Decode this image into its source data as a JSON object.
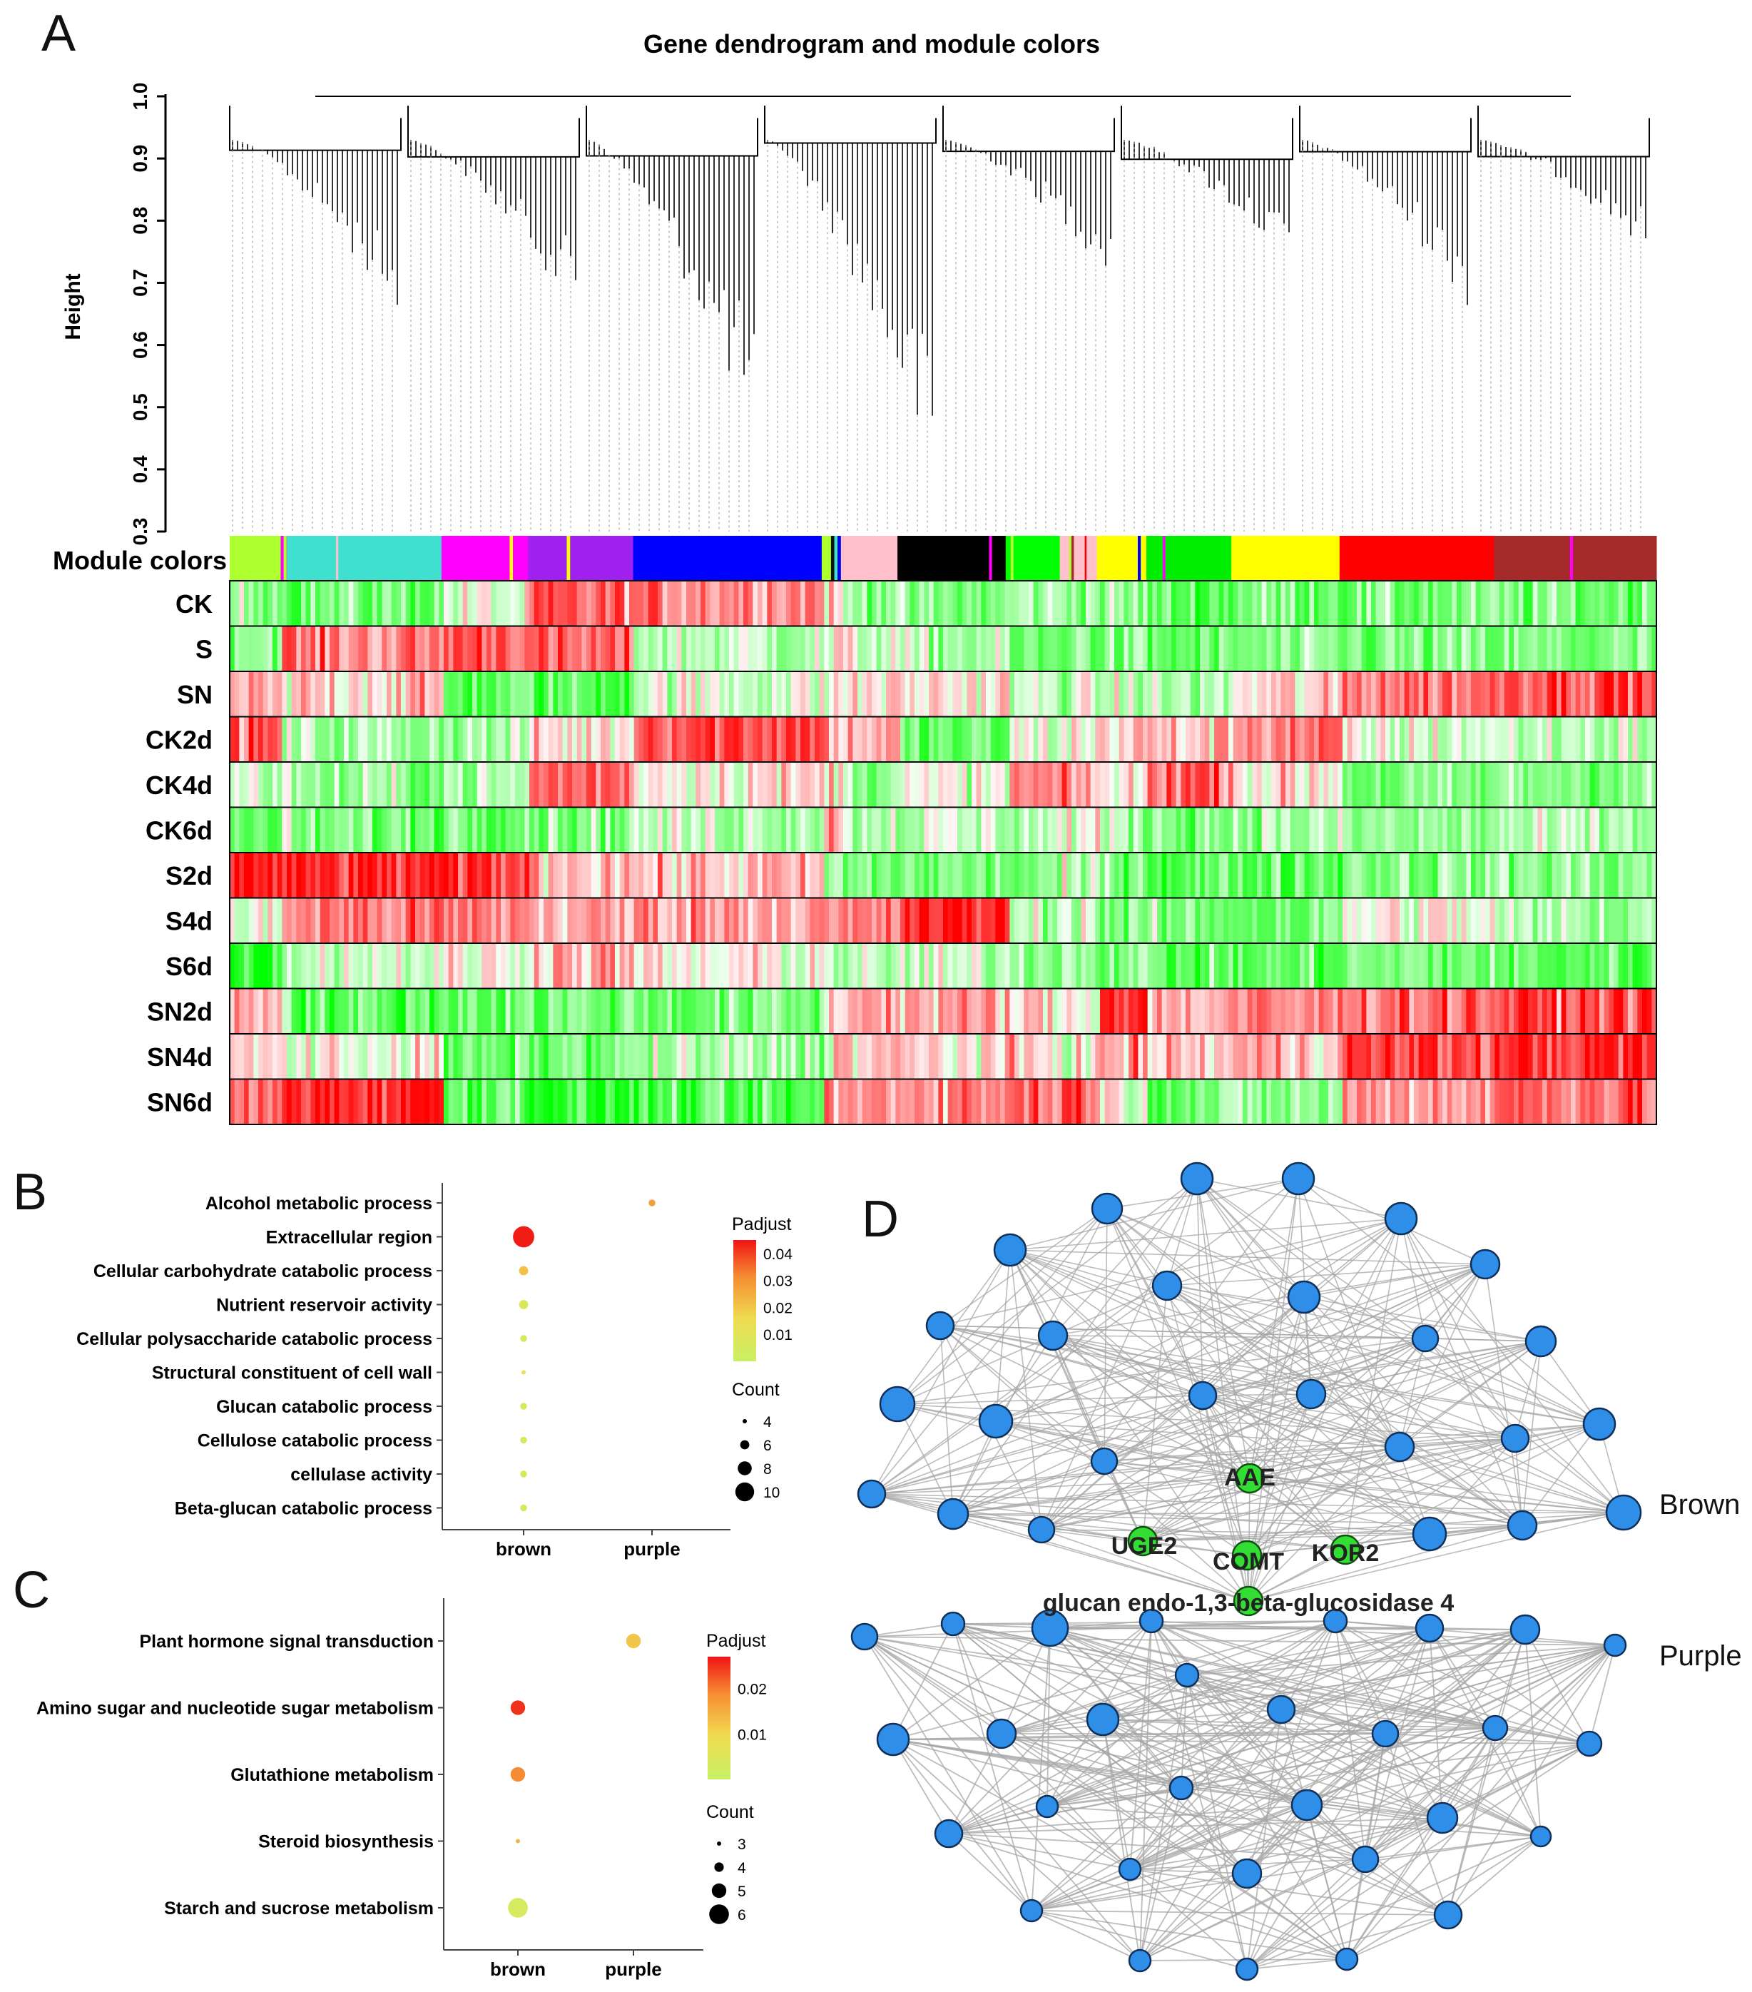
{
  "figure": {
    "panel_labels": [
      "A",
      "B",
      "C",
      "D"
    ],
    "colors": {
      "red": "#ff1a1a",
      "green": "#22ee22",
      "white": "#fff5f5",
      "edge": "#a6a6a6",
      "node_blue": "#2f8fe8",
      "node_green": "#33dd33"
    }
  },
  "panelA": {
    "title": "Gene dendrogram and module colors",
    "ylabel": "Height",
    "yticks": [
      "0.3",
      "0.4",
      "0.5",
      "0.6",
      "0.7",
      "0.8",
      "0.9",
      "1.0"
    ],
    "ylim": [
      0.3,
      1.0
    ],
    "module_colors_label": "Module colors",
    "modules": [
      {
        "name": "greenyellow",
        "color": "#adff2f",
        "size": 3.3
      },
      {
        "name": "magenta",
        "color": "#ff00ff",
        "size": 0.4
      },
      {
        "name": "turquoise",
        "color": "#40e0d0",
        "size": 10
      },
      {
        "name": "magenta",
        "color": "#ff00ff",
        "size": 5.6
      },
      {
        "name": "purple",
        "color": "#a020f0",
        "size": 6.8
      },
      {
        "name": "blue",
        "color": "#0000ff",
        "size": 12.2
      },
      {
        "name": "greenyellow",
        "color": "#adff2f",
        "size": 0.6
      },
      {
        "name": "black",
        "color": "#111111",
        "size": 0.5
      },
      {
        "name": "pink",
        "color": "#ffc0cb",
        "size": 3.8
      },
      {
        "name": "black",
        "color": "#000000",
        "size": 7.0
      },
      {
        "name": "green",
        "color": "#00ff00",
        "size": 3.5
      },
      {
        "name": "pink",
        "color": "#ffc0cb",
        "size": 2.4
      },
      {
        "name": "yellow",
        "color": "#ffff00",
        "size": 3.2
      },
      {
        "name": "green",
        "color": "#00ee00",
        "size": 5.5
      },
      {
        "name": "yellow",
        "color": "#ffff00",
        "size": 7.0
      },
      {
        "name": "red",
        "color": "#ff0000",
        "size": 10.0
      },
      {
        "name": "brown",
        "color": "#a52a2a",
        "size": 10.5
      }
    ],
    "trait_rows": [
      "CK",
      "S",
      "SN",
      "CK2d",
      "CK4d",
      "CK6d",
      "S2d",
      "S4d",
      "S6d",
      "SN2d",
      "SN4d",
      "SN6d"
    ],
    "row_profiles": [
      [
        -0.3,
        -0.6,
        -0.5,
        -0.1,
        0.55,
        0.5,
        0.15,
        0.0,
        -0.3,
        -0.5,
        -0.3,
        -0.3,
        -0.4,
        -0.6,
        -0.45,
        -0.5,
        -0.5
      ],
      [
        -0.3,
        0.6,
        0.45,
        0.7,
        0.5,
        -0.2,
        -0.1,
        0.1,
        -0.1,
        -0.3,
        -0.6,
        -0.4,
        -0.5,
        -0.6,
        -0.5,
        -0.5,
        -0.5
      ],
      [
        0.2,
        -0.2,
        0.2,
        -0.6,
        -0.6,
        -0.1,
        0.0,
        0.0,
        0.1,
        0.1,
        -0.2,
        -0.2,
        -0.2,
        -0.3,
        0.1,
        0.55,
        0.75
      ],
      [
        0.6,
        -0.3,
        -0.3,
        -0.3,
        0.1,
        0.75,
        0.4,
        0.2,
        0.3,
        -0.6,
        -0.1,
        0.0,
        0.2,
        0.2,
        0.5,
        -0.1,
        -0.2
      ],
      [
        -0.2,
        0.1,
        -0.4,
        -0.3,
        0.6,
        0.1,
        0.2,
        0.2,
        -0.3,
        -0.1,
        0.4,
        0.3,
        0.0,
        0.65,
        0.1,
        -0.5,
        -0.4
      ],
      [
        -0.6,
        -0.3,
        -0.5,
        -0.4,
        -0.4,
        -0.2,
        0.4,
        0.4,
        -0.2,
        -0.2,
        -0.2,
        0.0,
        -0.3,
        -0.4,
        -0.3,
        -0.4,
        -0.3
      ],
      [
        0.9,
        0.6,
        0.8,
        0.75,
        0.3,
        0.2,
        -0.5,
        -0.3,
        -0.5,
        -0.5,
        -0.5,
        -0.3,
        -0.4,
        -0.6,
        -0.55,
        -0.4,
        -0.4
      ],
      [
        -0.1,
        0.4,
        0.5,
        0.45,
        0.3,
        0.4,
        0.3,
        0.3,
        0.4,
        0.85,
        -0.2,
        -0.1,
        -0.5,
        -0.5,
        -0.5,
        0.0,
        -0.3
      ],
      [
        -0.8,
        -0.2,
        -0.1,
        0.0,
        0.3,
        0.0,
        0.0,
        -0.2,
        -0.3,
        -0.2,
        -0.3,
        -0.3,
        -0.4,
        -0.6,
        -0.6,
        -0.5,
        -0.6
      ],
      [
        0.3,
        0.0,
        -0.6,
        -0.5,
        -0.5,
        -0.5,
        0.1,
        0.0,
        0.4,
        0.3,
        0.1,
        0.0,
        0.9,
        0.3,
        0.4,
        0.6,
        0.7
      ],
      [
        0.1,
        -0.1,
        0.0,
        -0.6,
        -0.5,
        -0.3,
        0.0,
        0.2,
        0.2,
        0.1,
        0.1,
        0.0,
        0.3,
        0.2,
        0.3,
        0.7,
        0.8
      ],
      [
        0.5,
        0.9,
        0.9,
        -0.5,
        -0.8,
        -0.7,
        0.5,
        0.3,
        0.4,
        0.5,
        0.6,
        0.7,
        0.0,
        -0.5,
        -0.4,
        0.4,
        0.6
      ]
    ]
  },
  "panelB": {
    "chart_data": {
      "type": "scatter",
      "title": "",
      "columns": [
        "brown",
        "purple"
      ],
      "terms": [
        "Alcohol metabolic process",
        "Extracellular region",
        "Cellular carbohydrate catabolic process",
        "Nutrient reservoir activity",
        "Cellular polysaccharide catabolic process",
        "Structural constituent of cell wall",
        "Glucan catabolic process",
        "Cellulose catabolic process",
        "cellulase activity",
        "Beta-glucan catabolic process"
      ],
      "points": [
        {
          "term": "Alcohol metabolic process",
          "group": "purple",
          "count": 5,
          "padjust": 0.028
        },
        {
          "term": "Extracellular region",
          "group": "brown",
          "count": 11,
          "padjust": 0.044
        },
        {
          "term": "Cellular carbohydrate catabolic process",
          "group": "brown",
          "count": 6,
          "padjust": 0.021
        },
        {
          "term": "Nutrient reservoir activity",
          "group": "brown",
          "count": 6,
          "padjust": 0.007
        },
        {
          "term": "Cellular polysaccharide catabolic process",
          "group": "brown",
          "count": 5,
          "padjust": 0.006
        },
        {
          "term": "Structural constituent of cell wall",
          "group": "brown",
          "count": 4,
          "padjust": 0.012
        },
        {
          "term": "Glucan catabolic process",
          "group": "brown",
          "count": 5,
          "padjust": 0.006
        },
        {
          "term": "Cellulose catabolic process",
          "group": "brown",
          "count": 5,
          "padjust": 0.006
        },
        {
          "term": "cellulase activity",
          "group": "brown",
          "count": 5,
          "padjust": 0.006
        },
        {
          "term": "Beta-glucan catabolic process",
          "group": "brown",
          "count": 5,
          "padjust": 0.006
        }
      ],
      "legend_color_title": "Padjust",
      "legend_color_ticks": [
        "0.04",
        "0.03",
        "0.02",
        "0.01"
      ],
      "legend_color_range": [
        0.0,
        0.045
      ],
      "legend_size_title": "Count",
      "legend_size_values": [
        4,
        6,
        8,
        10
      ]
    }
  },
  "panelC": {
    "chart_data": {
      "type": "scatter",
      "title": "",
      "columns": [
        "brown",
        "purple"
      ],
      "terms": [
        "Plant hormone signal transduction",
        "Amino sugar and nucleotide sugar metabolism",
        "Glutathione metabolism",
        "Steroid biosynthesis",
        "Starch and sucrose metabolism"
      ],
      "points": [
        {
          "term": "Plant hormone signal transduction",
          "group": "purple",
          "count": 5,
          "padjust": 0.012
        },
        {
          "term": "Amino sugar and nucleotide sugar metabolism",
          "group": "brown",
          "count": 5,
          "padjust": 0.025
        },
        {
          "term": "Glutathione metabolism",
          "group": "brown",
          "count": 5,
          "padjust": 0.019
        },
        {
          "term": "Steroid biosynthesis",
          "group": "brown",
          "count": 3,
          "padjust": 0.014
        },
        {
          "term": "Starch and sucrose metabolism",
          "group": "brown",
          "count": 6,
          "padjust": 0.003
        }
      ],
      "legend_color_title": "Padjust",
      "legend_color_ticks": [
        "0.02",
        "0.01"
      ],
      "legend_color_range": [
        0.0,
        0.027
      ],
      "legend_size_title": "Count",
      "legend_size_values": [
        3,
        4,
        5,
        6
      ]
    }
  },
  "panelD": {
    "group_labels": [
      "Brown",
      "Purple"
    ],
    "hub_genes": [
      "AAE",
      "UGE2",
      "COMT",
      "KOR2",
      "glucan endo-1,3-beta-glucosidase 4"
    ]
  }
}
